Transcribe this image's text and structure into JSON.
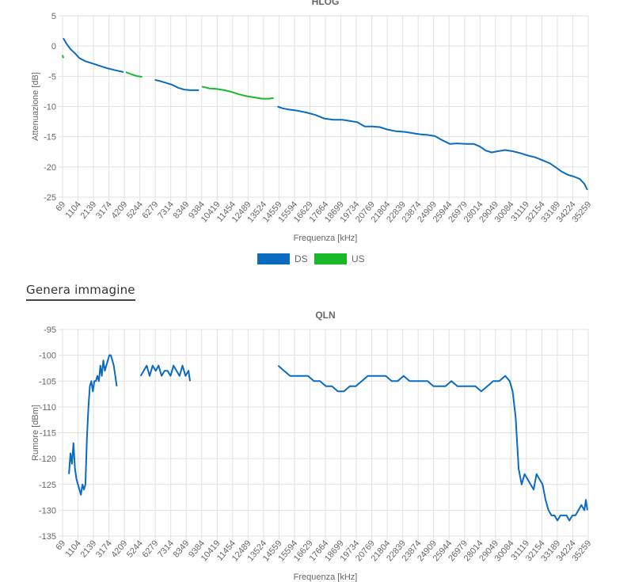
{
  "generate_link": "Genera immagine",
  "colors": {
    "ds": "#0b6bc1",
    "us": "#18b929",
    "grid": "#e1e1e1",
    "text": "#666666"
  },
  "chart_data": [
    {
      "id": "hlog",
      "type": "line",
      "title": "HLOG",
      "xlabel": "Frequenza [kHz]",
      "ylabel": "Attenuazione [dB]",
      "xlim": [
        69,
        35259
      ],
      "ylim": [
        -25,
        5
      ],
      "xticks": [
        69,
        1104,
        2139,
        3174,
        4209,
        5244,
        6279,
        7314,
        8349,
        9384,
        10419,
        11454,
        12489,
        13524,
        14559,
        15594,
        16629,
        17664,
        18699,
        19734,
        20769,
        21804,
        22839,
        23874,
        24909,
        25944,
        26979,
        28014,
        29049,
        30084,
        31119,
        32154,
        33189,
        34224,
        35259
      ],
      "yticks": [
        5,
        0,
        -5,
        -10,
        -15,
        -20,
        -25
      ],
      "grid": true,
      "legend": "bottom",
      "series": [
        {
          "name": "DS",
          "color": "#0b6bc1",
          "segments": [
            [
              [
                120,
                1.3
              ],
              [
                300,
                0.5
              ],
              [
                600,
                -0.5
              ],
              [
                900,
                -1.2
              ],
              [
                1200,
                -2.0
              ],
              [
                1600,
                -2.5
              ],
              [
                2100,
                -2.9
              ],
              [
                2600,
                -3.3
              ],
              [
                3100,
                -3.7
              ],
              [
                3600,
                -4.0
              ],
              [
                4150,
                -4.3
              ]
            ],
            [
              [
                6250,
                -5.6
              ],
              [
                6600,
                -5.8
              ],
              [
                7000,
                -6.1
              ],
              [
                7400,
                -6.4
              ],
              [
                7800,
                -6.9
              ],
              [
                8200,
                -7.2
              ],
              [
                8650,
                -7.3
              ],
              [
                9200,
                -7.3
              ]
            ],
            [
              [
                14450,
                -10.0
              ],
              [
                14800,
                -10.3
              ],
              [
                15200,
                -10.5
              ],
              [
                15800,
                -10.7
              ],
              [
                16400,
                -11.0
              ],
              [
                17000,
                -11.4
              ],
              [
                17600,
                -12.0
              ],
              [
                18200,
                -12.2
              ],
              [
                18800,
                -12.2
              ],
              [
                19300,
                -12.4
              ],
              [
                19800,
                -12.6
              ],
              [
                20300,
                -13.3
              ],
              [
                20800,
                -13.3
              ],
              [
                21300,
                -13.4
              ],
              [
                21800,
                -13.8
              ],
              [
                22400,
                -14.1
              ],
              [
                23000,
                -14.2
              ],
              [
                23500,
                -14.4
              ],
              [
                24000,
                -14.6
              ],
              [
                24500,
                -14.7
              ],
              [
                25000,
                -14.9
              ],
              [
                25500,
                -15.6
              ],
              [
                26000,
                -16.2
              ],
              [
                26500,
                -16.1
              ],
              [
                27100,
                -16.2
              ],
              [
                27600,
                -16.2
              ],
              [
                28000,
                -16.6
              ],
              [
                28400,
                -17.3
              ],
              [
                28800,
                -17.6
              ],
              [
                29200,
                -17.4
              ],
              [
                29700,
                -17.2
              ],
              [
                30200,
                -17.4
              ],
              [
                30700,
                -17.7
              ],
              [
                31200,
                -18.1
              ],
              [
                31700,
                -18.4
              ],
              [
                32200,
                -18.9
              ],
              [
                32700,
                -19.4
              ],
              [
                33100,
                -20.1
              ],
              [
                33500,
                -20.8
              ],
              [
                33900,
                -21.3
              ],
              [
                34300,
                -21.6
              ],
              [
                34700,
                -22.0
              ],
              [
                35000,
                -22.8
              ],
              [
                35200,
                -23.8
              ]
            ]
          ]
        },
        {
          "name": "US",
          "color": "#18b929",
          "segments": [
            [
              [
                69,
                -1.5
              ],
              [
                120,
                -2.0
              ]
            ],
            [
              [
                4300,
                -4.3
              ],
              [
                4700,
                -4.7
              ],
              [
                5100,
                -5.0
              ],
              [
                5400,
                -5.1
              ]
            ],
            [
              [
                9400,
                -6.7
              ],
              [
                9900,
                -7.0
              ],
              [
                10400,
                -7.1
              ],
              [
                10900,
                -7.3
              ],
              [
                11400,
                -7.6
              ],
              [
                11900,
                -8.0
              ],
              [
                12400,
                -8.3
              ],
              [
                12900,
                -8.5
              ],
              [
                13400,
                -8.7
              ],
              [
                13900,
                -8.7
              ],
              [
                14200,
                -8.6
              ]
            ]
          ]
        }
      ]
    },
    {
      "id": "qln",
      "type": "line",
      "title": "QLN",
      "xlabel": "Frequenza [kHz]",
      "ylabel": "Rumore [dBm]",
      "xlim": [
        69,
        35259
      ],
      "ylim": [
        -135,
        -95
      ],
      "xticks": [
        69,
        1104,
        2139,
        3174,
        4209,
        5244,
        6279,
        7314,
        8349,
        9384,
        10419,
        11454,
        12489,
        13524,
        14559,
        15594,
        16629,
        17664,
        18699,
        19734,
        20769,
        21804,
        22839,
        23874,
        24909,
        25944,
        26979,
        28014,
        29049,
        30084,
        31119,
        32154,
        33189,
        34224,
        35259
      ],
      "yticks": [
        -95,
        -100,
        -105,
        -110,
        -115,
        -120,
        -125,
        -130,
        -135
      ],
      "grid": true,
      "series": [
        {
          "name": "DS",
          "color": "#0b6bc1",
          "segments": [
            [
              [
                500,
                -123
              ],
              [
                600,
                -119
              ],
              [
                700,
                -121
              ],
              [
                800,
                -117
              ],
              [
                900,
                -122
              ],
              [
                1000,
                -124
              ],
              [
                1100,
                -125
              ],
              [
                1200,
                -126
              ],
              [
                1300,
                -127
              ],
              [
                1400,
                -125
              ],
              [
                1500,
                -126
              ],
              [
                1600,
                -125
              ],
              [
                1700,
                -116
              ],
              [
                1800,
                -110
              ],
              [
                1900,
                -106
              ],
              [
                2000,
                -105
              ],
              [
                2100,
                -107
              ],
              [
                2200,
                -105
              ],
              [
                2300,
                -105
              ],
              [
                2400,
                -104
              ],
              [
                2500,
                -105
              ],
              [
                2600,
                -102
              ],
              [
                2700,
                -104
              ],
              [
                2800,
                -101
              ],
              [
                2900,
                -103
              ],
              [
                3000,
                -102
              ],
              [
                3100,
                -101
              ],
              [
                3200,
                -100
              ],
              [
                3300,
                -100
              ],
              [
                3400,
                -101
              ],
              [
                3500,
                -102
              ],
              [
                3600,
                -104
              ],
              [
                3700,
                -106
              ]
            ],
            [
              [
                5300,
                -104
              ],
              [
                5500,
                -103
              ],
              [
                5700,
                -102
              ],
              [
                5900,
                -104
              ],
              [
                6100,
                -102
              ],
              [
                6300,
                -103
              ],
              [
                6500,
                -102
              ],
              [
                6700,
                -104
              ],
              [
                6900,
                -103
              ],
              [
                7100,
                -103
              ],
              [
                7300,
                -104
              ],
              [
                7500,
                -102
              ],
              [
                7700,
                -103
              ],
              [
                7900,
                -104
              ],
              [
                8100,
                -102
              ],
              [
                8300,
                -104
              ],
              [
                8500,
                -103
              ],
              [
                8600,
                -105
              ]
            ],
            [
              [
                14500,
                -102
              ],
              [
                14900,
                -103
              ],
              [
                15300,
                -104
              ],
              [
                15700,
                -104
              ],
              [
                16100,
                -104
              ],
              [
                16500,
                -104
              ],
              [
                16900,
                -105
              ],
              [
                17300,
                -105
              ],
              [
                17700,
                -106
              ],
              [
                18100,
                -106
              ],
              [
                18500,
                -107
              ],
              [
                18900,
                -107
              ],
              [
                19300,
                -106
              ],
              [
                19700,
                -106
              ],
              [
                20100,
                -105
              ],
              [
                20500,
                -104
              ],
              [
                20900,
                -104
              ],
              [
                21300,
                -104
              ],
              [
                21700,
                -104
              ],
              [
                22100,
                -105
              ],
              [
                22500,
                -105
              ],
              [
                22900,
                -104
              ],
              [
                23300,
                -105
              ],
              [
                23700,
                -105
              ],
              [
                24100,
                -105
              ],
              [
                24500,
                -105
              ],
              [
                24900,
                -106
              ],
              [
                25300,
                -106
              ],
              [
                25700,
                -106
              ],
              [
                26100,
                -105
              ],
              [
                26500,
                -106
              ],
              [
                26900,
                -106
              ],
              [
                27300,
                -106
              ],
              [
                27700,
                -106
              ],
              [
                28100,
                -107
              ],
              [
                28500,
                -106
              ],
              [
                28900,
                -105
              ],
              [
                29300,
                -105
              ],
              [
                29700,
                -104
              ],
              [
                30000,
                -105
              ],
              [
                30200,
                -107
              ],
              [
                30400,
                -112
              ],
              [
                30600,
                -122
              ],
              [
                30800,
                -125
              ],
              [
                31000,
                -123
              ],
              [
                31200,
                -124
              ],
              [
                31400,
                -125
              ],
              [
                31600,
                -126
              ],
              [
                31800,
                -123
              ],
              [
                32000,
                -124
              ],
              [
                32200,
                -125
              ],
              [
                32400,
                -128
              ],
              [
                32600,
                -130
              ],
              [
                32800,
                -131
              ],
              [
                33000,
                -131
              ],
              [
                33200,
                -132
              ],
              [
                33400,
                -131
              ],
              [
                33600,
                -131
              ],
              [
                33800,
                -131
              ],
              [
                34000,
                -132
              ],
              [
                34200,
                -131
              ],
              [
                34400,
                -131
              ],
              [
                34600,
                -130
              ],
              [
                34800,
                -129
              ],
              [
                35000,
                -130
              ],
              [
                35100,
                -128
              ],
              [
                35200,
                -130
              ]
            ]
          ]
        }
      ]
    }
  ]
}
